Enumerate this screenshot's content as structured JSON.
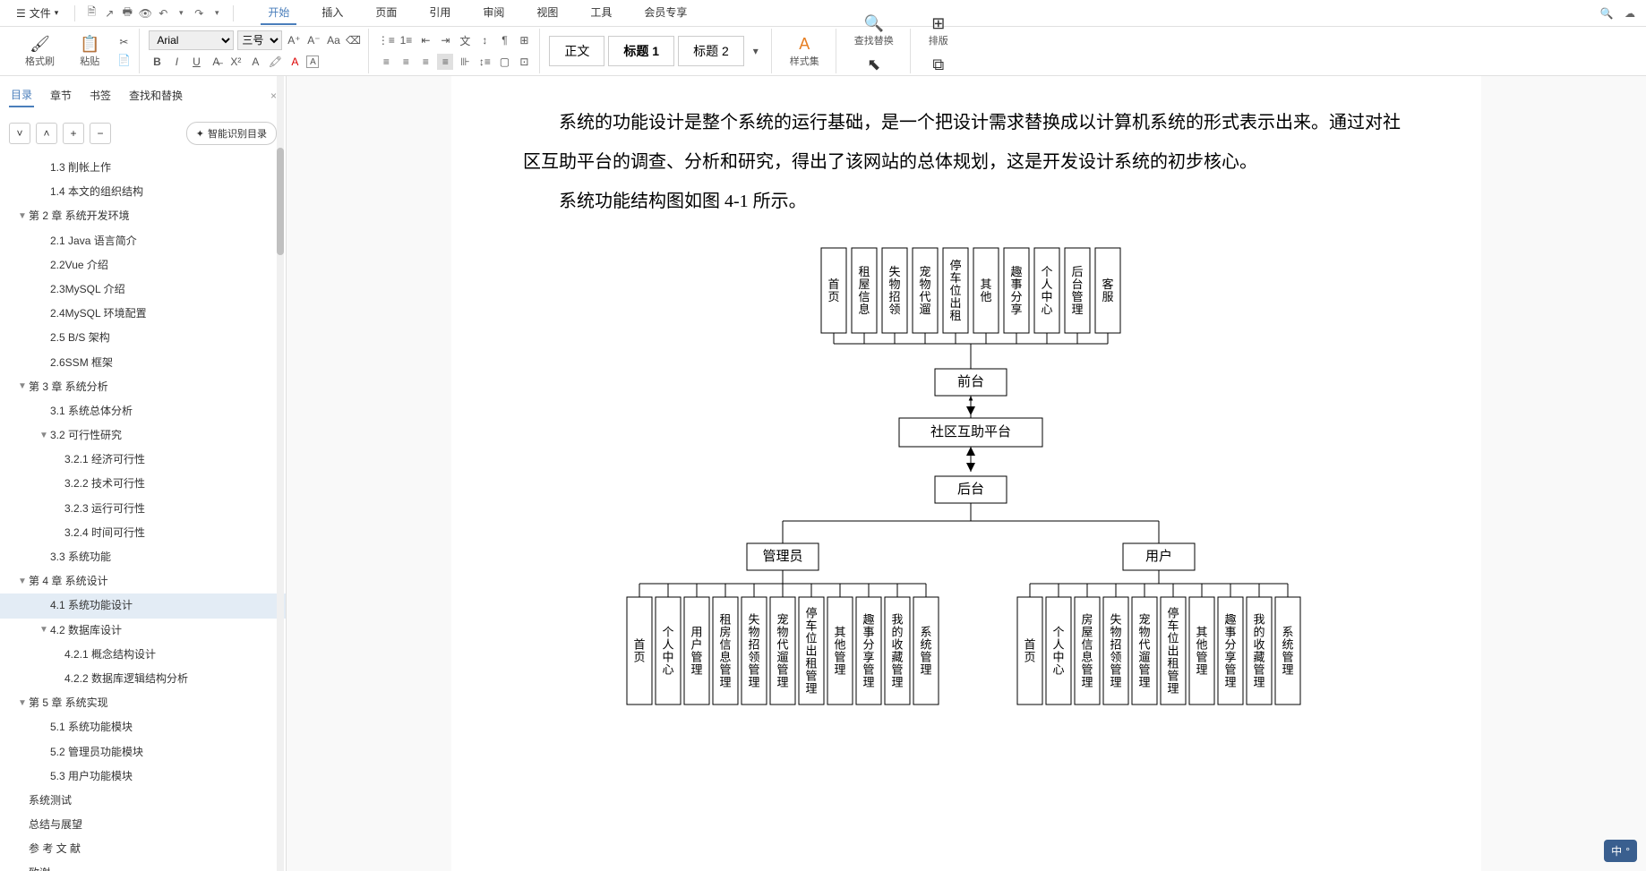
{
  "menubar": {
    "file": "文件",
    "tabs": [
      "开始",
      "插入",
      "页面",
      "引用",
      "审阅",
      "视图",
      "工具",
      "会员专享"
    ],
    "active_tab": "开始"
  },
  "ribbon": {
    "format_brush": "格式刷",
    "paste": "粘贴",
    "font_name": "Arial",
    "font_size": "三号",
    "style_normal": "正文",
    "style_h1": "标题 1",
    "style_h2": "标题 2",
    "styles": "样式集",
    "find_replace": "查找替换",
    "select": "选择",
    "layout": "排版",
    "arrange": "排列"
  },
  "sidebar": {
    "tabs": [
      "目录",
      "章节",
      "书签",
      "查找和替换"
    ],
    "active": "目录",
    "smart_toc": "智能识别目录",
    "items": [
      {
        "level": 2,
        "text": "1.3 削帐上作",
        "caret": ""
      },
      {
        "level": 2,
        "text": "1.4 本文的组织结构",
        "caret": ""
      },
      {
        "level": 1,
        "text": "第 2 章  系统开发环境",
        "caret": "▼"
      },
      {
        "level": 2,
        "text": "2.1 Java 语言简介",
        "caret": ""
      },
      {
        "level": 2,
        "text": "2.2Vue 介绍",
        "caret": ""
      },
      {
        "level": 2,
        "text": "2.3MySQL  介绍",
        "caret": ""
      },
      {
        "level": 2,
        "text": "2.4MySQL 环境配置",
        "caret": ""
      },
      {
        "level": 2,
        "text": "2.5 B/S 架构",
        "caret": ""
      },
      {
        "level": 2,
        "text": "2.6SSM 框架",
        "caret": ""
      },
      {
        "level": 1,
        "text": "第 3 章  系统分析",
        "caret": "▼"
      },
      {
        "level": 2,
        "text": "3.1 系统总体分析",
        "caret": ""
      },
      {
        "level": 2,
        "text": "3.2 可行性研究",
        "caret": "▼"
      },
      {
        "level": 3,
        "text": "3.2.1 经济可行性",
        "caret": ""
      },
      {
        "level": 3,
        "text": "3.2.2 技术可行性",
        "caret": ""
      },
      {
        "level": 3,
        "text": "3.2.3 运行可行性",
        "caret": ""
      },
      {
        "level": 3,
        "text": "3.2.4 时间可行性",
        "caret": ""
      },
      {
        "level": 2,
        "text": "3.3 系统功能",
        "caret": ""
      },
      {
        "level": 1,
        "text": "第 4 章  系统设计",
        "caret": "▼"
      },
      {
        "level": 2,
        "text": "4.1 系统功能设计",
        "caret": "",
        "selected": true
      },
      {
        "level": 2,
        "text": "4.2 数据库设计",
        "caret": "▼"
      },
      {
        "level": 3,
        "text": "4.2.1 概念结构设计",
        "caret": ""
      },
      {
        "level": 3,
        "text": "4.2.2 数据库逻辑结构分析",
        "caret": ""
      },
      {
        "level": 1,
        "text": "第 5 章  系统实现",
        "caret": "▼"
      },
      {
        "level": 2,
        "text": "5.1 系统功能模块",
        "caret": ""
      },
      {
        "level": 2,
        "text": "5.2 管理员功能模块",
        "caret": ""
      },
      {
        "level": 2,
        "text": "5.3 用户功能模块",
        "caret": ""
      },
      {
        "level": 1,
        "text": "系统测试",
        "caret": ""
      },
      {
        "level": 1,
        "text": "总结与展望",
        "caret": ""
      },
      {
        "level": 1,
        "text": "参 考 文 献",
        "caret": ""
      },
      {
        "level": 1,
        "text": "致谢",
        "caret": ""
      }
    ]
  },
  "document": {
    "para1": "系统的功能设计是整个系统的运行基础，是一个把设计需求替换成以计算机系统的形式表示出来。通过对社区互助平台的调查、分析和研究，得出了该网站的总体规划，这是开发设计系统的初步核心。",
    "para2": "系统功能结构图如图 4-1 所示。",
    "diagram": {
      "front_items": [
        "首页",
        "租屋信息",
        "失物招领",
        "宠物代遛",
        "停车位出租",
        "其他",
        "趣事分享",
        "个人中心",
        "后台管理",
        "客服"
      ],
      "front": "前台",
      "center": "社区互助平台",
      "back": "后台",
      "admin": "管理员",
      "user": "用户",
      "admin_items": [
        "首页",
        "个人中心",
        "用户管理",
        "租房信息管理",
        "失物招领管理",
        "宠物代遛管理",
        "停车位出租管理",
        "其他管理",
        "趣事分享管理",
        "我的收藏管理",
        "系统管理"
      ],
      "user_items": [
        "首页",
        "个人中心",
        "房屋信息管理",
        "失物招领管理",
        "宠物代遛管理",
        "停车位出租管理",
        "其他管理",
        "趣事分享管理",
        "我的收藏管理",
        "系统管理"
      ]
    }
  },
  "ime": "中"
}
